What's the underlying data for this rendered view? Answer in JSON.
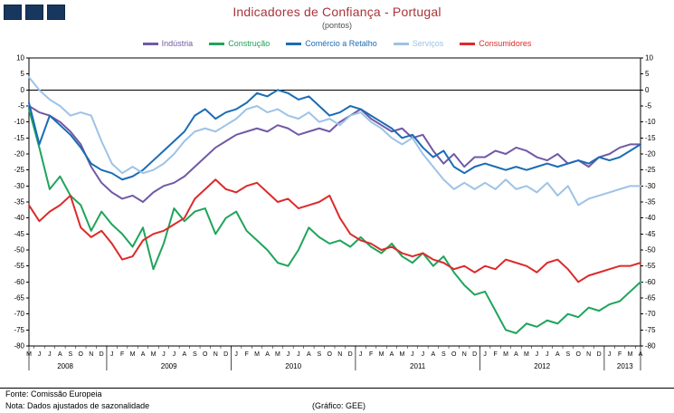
{
  "header": {
    "title": "Indicadores de Confiança - Portugal",
    "subtitle": "(pontos)",
    "title_color": "#A93439"
  },
  "logo": {
    "squares": 3,
    "color": "#17375E"
  },
  "footer": {
    "source": "Fonte: Comissão Europeia",
    "note": "Nota: Dados ajustados de sazonalidade",
    "credit": "(Gráfico: GEE)"
  },
  "chart_data": {
    "type": "line",
    "title": "Indicadores de Confiança - Portugal",
    "subtitle": "(pontos)",
    "xlabel": "",
    "ylabel": "",
    "ylim": [
      -80,
      10
    ],
    "ytick_step": 5,
    "grid": false,
    "legend_position": "top",
    "axis_color": "#000000",
    "x_labels": [
      "M",
      "J",
      "J",
      "A",
      "S",
      "O",
      "N",
      "D",
      "J",
      "F",
      "M",
      "A",
      "M",
      "J",
      "J",
      "A",
      "S",
      "O",
      "N",
      "D",
      "J",
      "F",
      "M",
      "A",
      "M",
      "J",
      "J",
      "A",
      "S",
      "O",
      "N",
      "D",
      "J",
      "F",
      "M",
      "A",
      "M",
      "J",
      "J",
      "A",
      "S",
      "O",
      "N",
      "D",
      "J",
      "F",
      "M",
      "A",
      "M",
      "J",
      "J",
      "A",
      "S",
      "O",
      "N",
      "D",
      "J",
      "F",
      "M",
      "A"
    ],
    "year_groups": [
      {
        "label": "2008",
        "count": 8
      },
      {
        "label": "2009",
        "count": 12
      },
      {
        "label": "2010",
        "count": 12
      },
      {
        "label": "2011",
        "count": 12
      },
      {
        "label": "2012",
        "count": 12
      },
      {
        "label": "2013",
        "count": 4
      }
    ],
    "series": [
      {
        "name": "Indústria",
        "color": "#7159A5",
        "values": [
          -5,
          -7,
          -8,
          -10,
          -13,
          -17,
          -24,
          -29,
          -32,
          -34,
          -33,
          -35,
          -32,
          -30,
          -29,
          -27,
          -24,
          -21,
          -18,
          -16,
          -14,
          -13,
          -12,
          -13,
          -11,
          -12,
          -14,
          -13,
          -12,
          -13,
          -10,
          -8,
          -6,
          -9,
          -11,
          -13,
          -12,
          -15,
          -14,
          -19,
          -23,
          -20,
          -24,
          -21,
          -21,
          -19,
          -20,
          -18,
          -19,
          -21,
          -22,
          -20,
          -23,
          -22,
          -24,
          -21,
          -20,
          -18,
          -17,
          -17
        ]
      },
      {
        "name": "Construção",
        "color": "#1FA45B",
        "values": [
          -6,
          -18,
          -31,
          -27,
          -33,
          -36,
          -44,
          -38,
          -42,
          -45,
          -49,
          -43,
          -56,
          -48,
          -37,
          -41,
          -38,
          -37,
          -45,
          -40,
          -38,
          -44,
          -47,
          -50,
          -54,
          -55,
          -50,
          -43,
          -46,
          -48,
          -47,
          -49,
          -46,
          -49,
          -51,
          -48,
          -52,
          -54,
          -51,
          -55,
          -52,
          -57,
          -61,
          -64,
          -63,
          -69,
          -75,
          -76,
          -73,
          -74,
          -72,
          -73,
          -70,
          -71,
          -68,
          -69,
          -67,
          -66,
          -63,
          -60
        ]
      },
      {
        "name": "Comércio a Retalho",
        "color": "#1B6CB5",
        "values": [
          -4,
          -17,
          -8,
          -11,
          -14,
          -18,
          -23,
          -25,
          -26,
          -28,
          -27,
          -25,
          -22,
          -19,
          -16,
          -13,
          -8,
          -6,
          -9,
          -7,
          -6,
          -4,
          -1,
          -2,
          0,
          -1,
          -3,
          -2,
          -5,
          -8,
          -7,
          -5,
          -6,
          -8,
          -10,
          -12,
          -15,
          -14,
          -18,
          -21,
          -19,
          -24,
          -26,
          -24,
          -23,
          -24,
          -25,
          -24,
          -25,
          -24,
          -23,
          -24,
          -23,
          -22,
          -23,
          -21,
          -22,
          -21,
          -19,
          -17
        ]
      },
      {
        "name": "Serviços",
        "color": "#9DC3E6",
        "values": [
          4,
          0,
          -3,
          -5,
          -8,
          -7,
          -8,
          -16,
          -23,
          -26,
          -24,
          -26,
          -25,
          -23,
          -20,
          -16,
          -13,
          -12,
          -13,
          -11,
          -9,
          -6,
          -5,
          -7,
          -6,
          -8,
          -9,
          -7,
          -10,
          -9,
          -11,
          -8,
          -7,
          -10,
          -12,
          -15,
          -17,
          -15,
          -20,
          -24,
          -28,
          -31,
          -29,
          -31,
          -29,
          -31,
          -28,
          -31,
          -30,
          -32,
          -29,
          -33,
          -30,
          -36,
          -34,
          -33,
          -32,
          -31,
          -30,
          -30
        ]
      },
      {
        "name": "Consumidores",
        "color": "#DD2A2A",
        "values": [
          -36,
          -41,
          -38,
          -36,
          -33,
          -43,
          -46,
          -44,
          -48,
          -53,
          -52,
          -47,
          -45,
          -44,
          -42,
          -40,
          -34,
          -31,
          -28,
          -31,
          -32,
          -30,
          -29,
          -32,
          -35,
          -34,
          -37,
          -36,
          -35,
          -33,
          -40,
          -45,
          -47,
          -48,
          -50,
          -49,
          -51,
          -52,
          -51,
          -53,
          -54,
          -56,
          -55,
          -57,
          -55,
          -56,
          -53,
          -54,
          -55,
          -57,
          -54,
          -53,
          -56,
          -60,
          -58,
          -57,
          -56,
          -55,
          -55,
          -54
        ]
      }
    ]
  }
}
